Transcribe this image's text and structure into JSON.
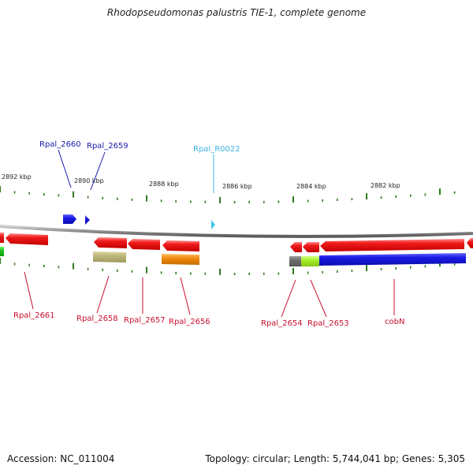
{
  "title": "Rhodopseudomonas palustris TIE-1, complete genome",
  "footer": {
    "accession": "Accession: NC_011004",
    "stats": "Topology: circular; Length: 5,744,041 bp; Genes: 5,305"
  },
  "colors": {
    "backbone": "#8c8c8c",
    "tick": "#2f7a1e",
    "gene_red": "#ee1111",
    "gene_blue": "#1a1ae6",
    "trna_cyan": "#3ec8ee",
    "gene_khaki": "#bdb77a",
    "gene_orange": "#f08a10",
    "gene_gray": "#6e6e6e",
    "gene_lime": "#a6ef2a",
    "gene_green": "#19c219",
    "label_red": "#c8102e",
    "label_blue": "#1a1aa8",
    "label_cyan": "#3ab4dc"
  },
  "scale_labels": [
    "2892 kbp",
    "2890 kbp",
    "2888 kbp",
    "2886 kbp",
    "2884 kbp",
    "2882 kbp"
  ],
  "gene_labels": [
    {
      "text": "Rpal_2660",
      "color": "blue"
    },
    {
      "text": "Rpal_2659",
      "color": "blue"
    },
    {
      "text": "Rpal_R0022",
      "color": "cyan"
    },
    {
      "text": "Rpal_2661",
      "color": "red"
    },
    {
      "text": "Rpal_2658",
      "color": "red"
    },
    {
      "text": "Rpal_2657",
      "color": "red"
    },
    {
      "text": "Rpal_2656",
      "color": "red"
    },
    {
      "text": "Rpal_2654",
      "color": "red"
    },
    {
      "text": "Rpal_2653",
      "color": "red"
    },
    {
      "text": "cobN",
      "color": "red"
    }
  ]
}
